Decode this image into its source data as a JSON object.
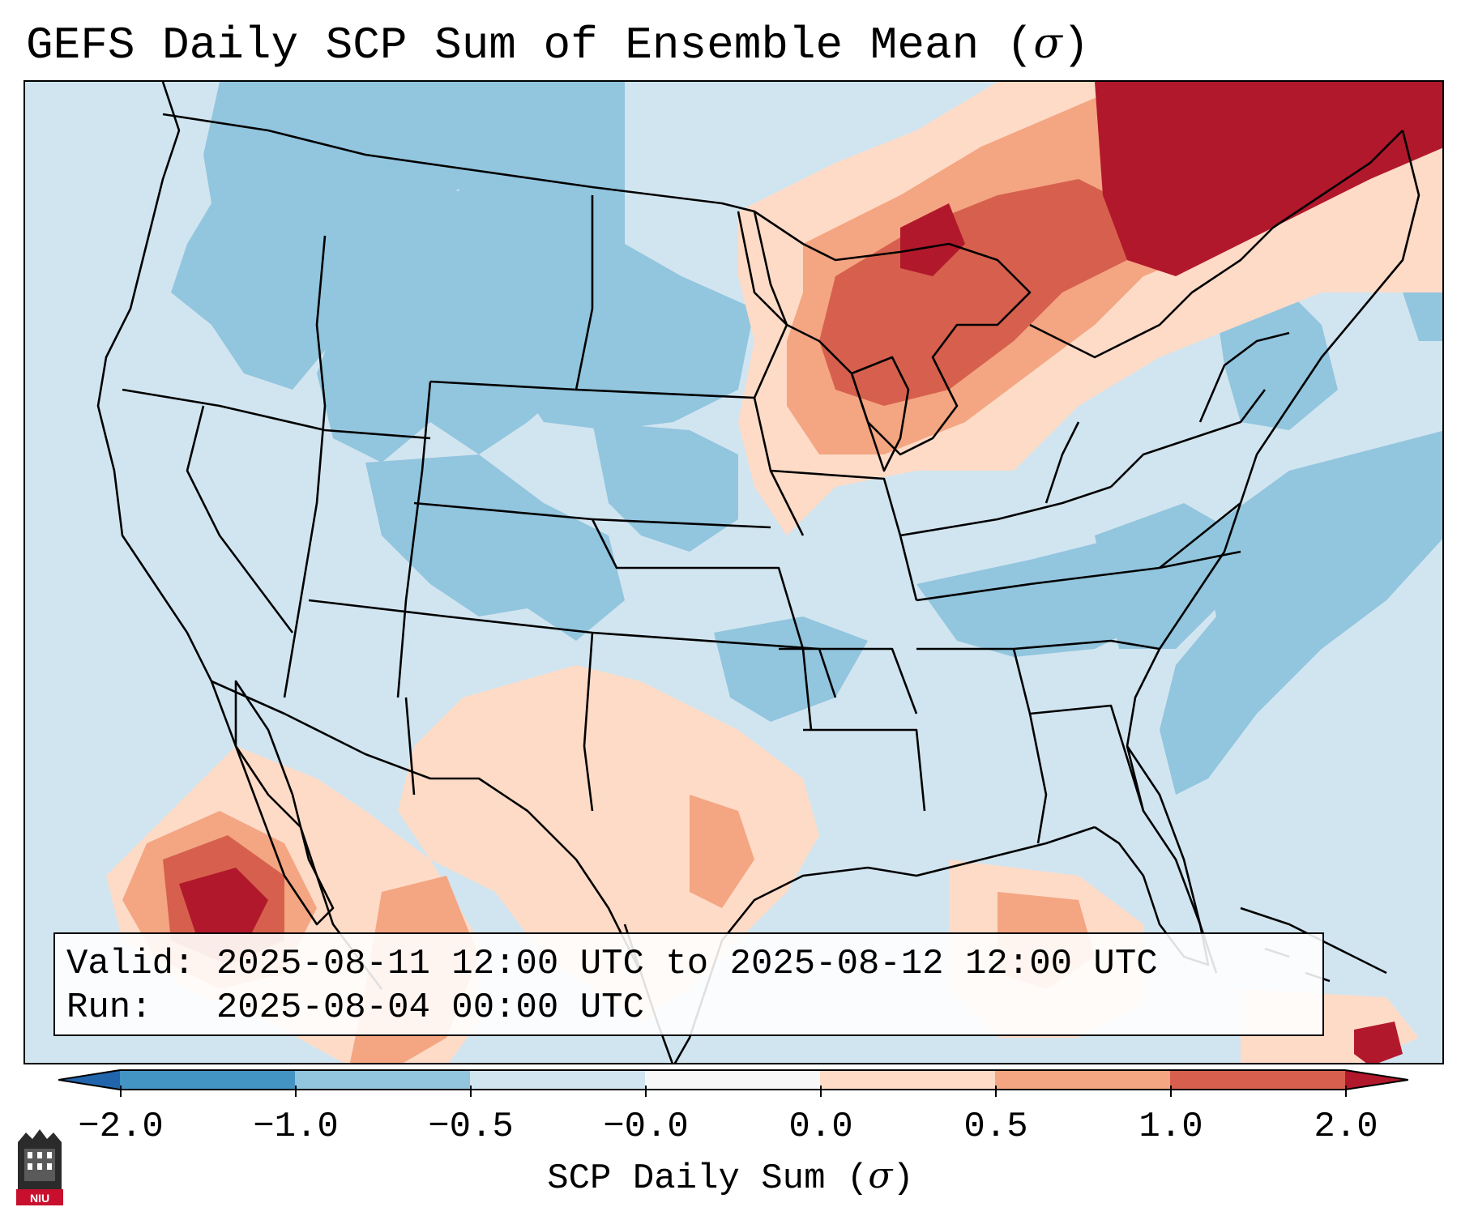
{
  "title": {
    "text": "GEFS Daily SCP Sum of Ensemble Mean (",
    "symbol": "σ",
    "close": ")"
  },
  "info_box": {
    "valid_label": "Valid:",
    "valid_value": "2025-08-11 12:00 UTC to 2025-08-12 12:00 UTC",
    "run_label": "Run:",
    "run_value": "2025-08-04 00:00 UTC"
  },
  "colorbar": {
    "label_text": "SCP Daily Sum (",
    "label_symbol": "σ",
    "label_close": ")",
    "tick_labels": [
      "−2.0",
      "−1.0",
      "−0.5",
      "−0.0",
      "0.0",
      "0.5",
      "1.0",
      "2.0"
    ],
    "colors": {
      "below": "#2166ac",
      "band_neg2_neg1": "#4393c3",
      "band_neg1_neg05": "#92c5de",
      "band_neg05_0": "#d1e5f0",
      "band_0": "#f7f7f7",
      "band_0_05": "#fddbc7",
      "band_05_1": "#f4a582",
      "band_1_2": "#d6604d",
      "above": "#b2182b"
    }
  },
  "map": {
    "region": "Continental United States",
    "background_color": "#d1e5f0",
    "border_color": "#000000"
  },
  "logo": {
    "text": "NIU"
  }
}
